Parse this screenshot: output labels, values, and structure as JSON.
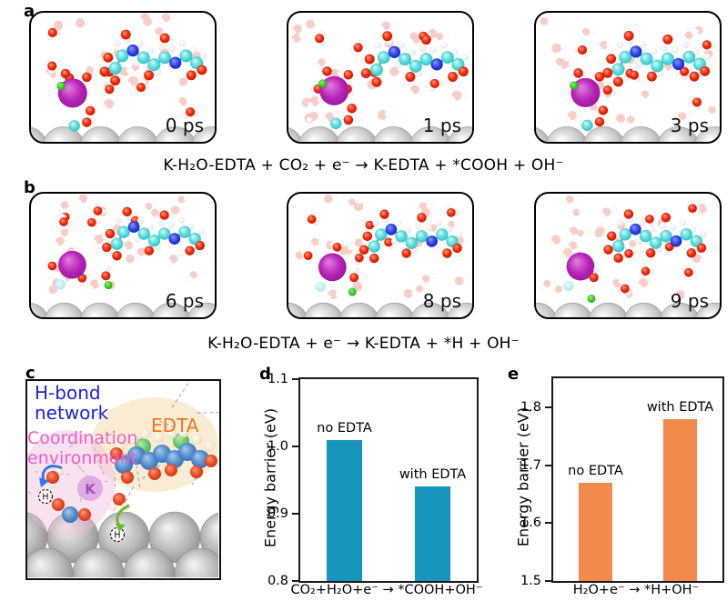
{
  "panel_a": {
    "label": "a",
    "snapshots": [
      {
        "time_label": "0 ps"
      },
      {
        "time_label": "1 ps"
      },
      {
        "time_label": "3 ps"
      }
    ],
    "equation": "K-H₂O-EDTA + CO₂ + e⁻ → K-EDTA + *COOH + OH⁻"
  },
  "panel_b": {
    "label": "b",
    "snapshots": [
      {
        "time_label": "6 ps"
      },
      {
        "time_label": "8 ps"
      },
      {
        "time_label": "9 ps"
      }
    ],
    "equation": "K-H₂O-EDTA + e⁻ → K-EDTA + *H + OH⁻"
  },
  "panel_c": {
    "label": "c",
    "annotations": {
      "h_bond_line1": "H-bond",
      "h_bond_line2": "network",
      "coordination_line1": "Coordination",
      "coordination_line2": "environment",
      "edta": "EDTA",
      "potassium": "K",
      "transferred_hydrogen": "H"
    },
    "colors": {
      "h_bond_text": "#2222dd",
      "coordination_text": "#f25cc8",
      "edta_text": "#f07522",
      "edta_highlight": "#f9ecd2",
      "coordination_highlight": "#f0bede"
    }
  },
  "panel_d": {
    "label": "d"
  },
  "panel_e": {
    "label": "e"
  },
  "chart_data": [
    {
      "panel": "d",
      "type": "bar",
      "categories": [
        "no EDTA",
        "with EDTA"
      ],
      "values": [
        1.01,
        0.94
      ],
      "ylabel": "Energy barrier (eV)",
      "xlabel": "CO₂+H₂O+e⁻ → *COOH+OH⁻",
      "ylim": [
        0.8,
        1.1
      ],
      "yticks": [
        "0.8",
        "0.9",
        "1.0",
        "1.1"
      ],
      "bar_color": "#1795bd",
      "grid": false,
      "legend_position": "none"
    },
    {
      "panel": "e",
      "type": "bar",
      "categories": [
        "no EDTA",
        "with EDTA"
      ],
      "values": [
        1.67,
        1.78
      ],
      "ylabel": "Energy barrier (eV)",
      "xlabel": "H₂O+e⁻ → *H+OH⁻",
      "ylim": [
        1.5,
        1.85
      ],
      "yticks": [
        "1.5",
        "1.6",
        "1.7",
        "1.8"
      ],
      "bar_color": "#f28a4d",
      "grid": false,
      "legend_position": "none"
    }
  ]
}
